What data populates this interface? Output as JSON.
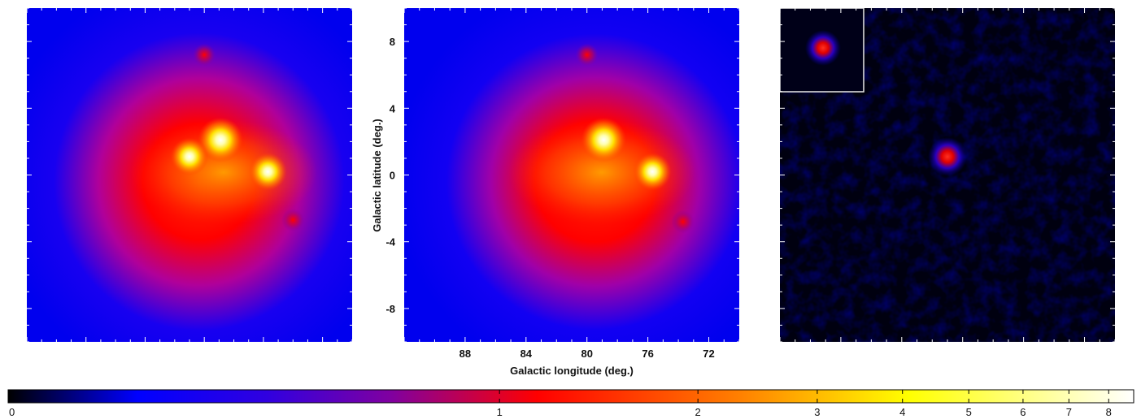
{
  "chart_data": [
    {
      "type": "heatmap",
      "panel": "left",
      "title": "",
      "xlabel": "",
      "ylabel": "",
      "xlim": [
        92,
        70
      ],
      "ylim": [
        -10,
        10
      ],
      "sources": [
        {
          "l": 78.9,
          "b": 2.1,
          "intensity": 8.5
        },
        {
          "l": 81.0,
          "b": 1.1,
          "intensity": 7.5
        },
        {
          "l": 75.7,
          "b": 0.2,
          "intensity": 7.5
        },
        {
          "l": 80.0,
          "b": 7.2,
          "intensity": 2.2
        },
        {
          "l": 74.0,
          "b": -2.7,
          "intensity": 2.2
        }
      ]
    },
    {
      "type": "heatmap",
      "panel": "center",
      "title": "",
      "xlabel": "Galactic longitude (deg.)",
      "ylabel": "Galactic latitude (deg.)",
      "xlim": [
        92,
        70
      ],
      "ylim": [
        -10,
        10
      ],
      "xticks": [
        "88",
        "84",
        "80",
        "76",
        "72"
      ],
      "xtick_values": [
        88,
        84,
        80,
        76,
        72
      ],
      "yticks": [
        "8",
        "4",
        "0",
        "-4",
        "-8"
      ],
      "ytick_values": [
        8,
        4,
        0,
        -4,
        -8
      ],
      "sources": [
        {
          "l": 78.9,
          "b": 2.1,
          "intensity": 8.5
        },
        {
          "l": 75.7,
          "b": 0.2,
          "intensity": 7.5
        },
        {
          "l": 80.0,
          "b": 7.2,
          "intensity": 2.0
        },
        {
          "l": 73.7,
          "b": -2.8,
          "intensity": 2.2
        }
      ]
    },
    {
      "type": "heatmap",
      "panel": "right",
      "title": "",
      "xlabel": "",
      "ylabel": "",
      "xlim": [
        92,
        70
      ],
      "ylim": [
        -10,
        10
      ],
      "sources": [
        {
          "l": 81.0,
          "b": 1.1,
          "intensity": 2.8
        }
      ],
      "inset": {
        "sources": [
          {
            "intensity": 2.8
          }
        ]
      }
    }
  ],
  "colorbar": {
    "colormap": [
      "#000000",
      "#0000ff",
      "#ff0000",
      "#ffff00",
      "#ffffff"
    ],
    "ticks": [
      "0",
      "1",
      "2",
      "3",
      "4",
      "5",
      "6",
      "7",
      "8"
    ],
    "tick_values": [
      0,
      1,
      2,
      3,
      4,
      5,
      6,
      7,
      8
    ],
    "range": [
      0,
      8.7
    ]
  }
}
